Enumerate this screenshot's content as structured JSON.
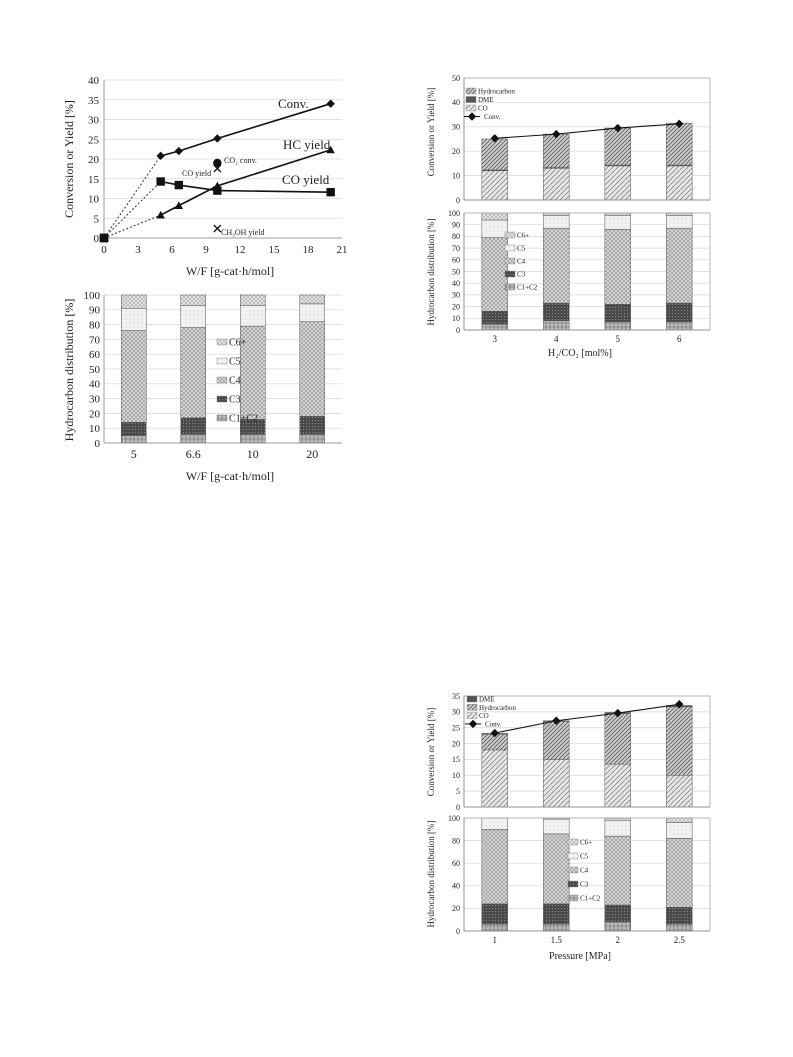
{
  "colors": {
    "conv_line": "#111111",
    "dashed": "#333333",
    "bar_outline": "#555555",
    "grid": "#d6d6d6"
  },
  "chart_data": [
    {
      "id": "wf_conversion",
      "type": "line",
      "xlabel": "W/F [g-cat·h/mol]",
      "ylabel": "Conversion or Yield [%]",
      "xlim": [
        0,
        21
      ],
      "ylim": [
        0,
        40
      ],
      "xticks": [
        0,
        3,
        6,
        9,
        12,
        15,
        18,
        21
      ],
      "yticks": [
        0,
        5,
        10,
        15,
        20,
        25,
        30,
        35,
        40
      ],
      "grid": "horizontal",
      "series": [
        {
          "name": "Conv.",
          "marker": "diamond",
          "points": [
            [
              0,
              0
            ],
            [
              5,
              20.8
            ],
            [
              6.6,
              22
            ],
            [
              10,
              25.2
            ],
            [
              20,
              34
            ]
          ],
          "dashed_until": 1
        },
        {
          "name": "HC yield",
          "marker": "triangle",
          "points": [
            [
              0,
              0
            ],
            [
              5,
              5.8
            ],
            [
              6.6,
              8.2
            ],
            [
              10,
              13.2
            ],
            [
              20,
              22.3
            ]
          ],
          "dashed_until": 1
        },
        {
          "name": "CO yield",
          "marker": "square",
          "points": [
            [
              0,
              0
            ],
            [
              5,
              14.3
            ],
            [
              6.6,
              13.4
            ],
            [
              10,
              12
            ],
            [
              20,
              11.6
            ]
          ],
          "dashed_until": 1
        },
        {
          "name": "CO2 conv.",
          "marker": "circle",
          "points": [
            [
              10,
              19
            ]
          ]
        },
        {
          "name": "CO yield",
          "marker": "x",
          "points": [
            [
              10,
              17.6
            ]
          ]
        },
        {
          "name": "CH3OH yield",
          "marker": "x",
          "points": [
            [
              10,
              2.4
            ]
          ]
        }
      ],
      "labels": {
        "conv": "Conv.",
        "hc": "HC yield",
        "co": "CO yield",
        "co2": "CO₂ conv.",
        "co_small": "CO yield",
        "ch3oh": "CH₃OH yield"
      }
    },
    {
      "id": "wf_distribution",
      "type": "bar",
      "stacked": true,
      "xlabel": "W/F [g-cat·h/mol]",
      "ylabel": "Hydrocarbon distribution [%]",
      "ylim": [
        0,
        100
      ],
      "yticks": [
        0,
        10,
        20,
        30,
        40,
        50,
        60,
        70,
        80,
        90,
        100
      ],
      "categories": [
        "5",
        "6.6",
        "10",
        "20"
      ],
      "legend": [
        "C6+",
        "C5",
        "C4",
        "C3",
        "C1+C2"
      ],
      "series": [
        {
          "name": "C1+C2",
          "values": [
            5,
            6,
            6,
            6
          ],
          "pattern": "p-c12"
        },
        {
          "name": "C3",
          "values": [
            9,
            11,
            10,
            12
          ],
          "pattern": "p-c3"
        },
        {
          "name": "C4",
          "values": [
            62,
            61,
            63,
            64
          ],
          "pattern": "p-c4"
        },
        {
          "name": "C5",
          "values": [
            15,
            15,
            14,
            12
          ],
          "pattern": "p-c5"
        },
        {
          "name": "C6+",
          "values": [
            9,
            7,
            7,
            6
          ],
          "pattern": "p-c6"
        }
      ]
    },
    {
      "id": "h2co2_conversion",
      "type": "bar",
      "stacked": true,
      "xlabel": "",
      "ylabel": "Conversion or Yield [%]",
      "ylim": [
        0,
        50
      ],
      "yticks": [
        0,
        10,
        20,
        30,
        40,
        50
      ],
      "categories": [
        "3",
        "4",
        "5",
        "6"
      ],
      "legend": [
        "Hydrocarbon",
        "DME",
        "CO",
        "Conv."
      ],
      "series": [
        {
          "name": "CO",
          "values": [
            12,
            13,
            14,
            14
          ],
          "pattern": "p-co"
        },
        {
          "name": "DME",
          "values": [
            0.3,
            0.3,
            0.3,
            0.3
          ],
          "pattern": "p-dme"
        },
        {
          "name": "Hydrocarbon",
          "values": [
            12.7,
            13.7,
            15.2,
            17.2
          ],
          "pattern": "p-hc"
        }
      ],
      "line": {
        "name": "Conv.",
        "values": [
          25.3,
          27,
          29.5,
          31.2
        ]
      }
    },
    {
      "id": "h2co2_distribution",
      "type": "bar",
      "stacked": true,
      "xlabel": "H₂/CO₂ [mol%]",
      "ylabel": "Hydrocarbon distribution [%]",
      "ylim": [
        0,
        100
      ],
      "yticks": [
        0,
        10,
        20,
        30,
        40,
        50,
        60,
        70,
        80,
        90,
        100
      ],
      "categories": [
        "3",
        "4",
        "5",
        "6"
      ],
      "legend": [
        "C6+",
        "C5",
        "C4",
        "C3",
        "C1+C2"
      ],
      "series": [
        {
          "name": "C1+C2",
          "values": [
            5,
            8,
            7,
            7
          ],
          "pattern": "p-c12"
        },
        {
          "name": "C3",
          "values": [
            11,
            15,
            15,
            16
          ],
          "pattern": "p-c3"
        },
        {
          "name": "C4",
          "values": [
            63,
            64,
            64,
            64
          ],
          "pattern": "p-c4"
        },
        {
          "name": "C5",
          "values": [
            15,
            11,
            12,
            11
          ],
          "pattern": "p-c5"
        },
        {
          "name": "C6+",
          "values": [
            6,
            2,
            2,
            2
          ],
          "pattern": "p-c6"
        }
      ]
    },
    {
      "id": "pressure_conversion",
      "type": "bar",
      "stacked": true,
      "xlabel": "",
      "ylabel": "Conversion or Yield [%]",
      "ylim": [
        0,
        35
      ],
      "yticks": [
        0,
        5,
        10,
        15,
        20,
        25,
        30,
        35
      ],
      "categories": [
        "1",
        "1.5",
        "2",
        "2.5"
      ],
      "legend": [
        "DME",
        "Hydrocarbon",
        "CO",
        "Conv."
      ],
      "series": [
        {
          "name": "CO",
          "values": [
            18,
            15,
            13.5,
            10
          ],
          "pattern": "p-co"
        },
        {
          "name": "Hydrocarbon",
          "values": [
            5,
            12,
            16,
            21.6
          ],
          "pattern": "p-hc"
        },
        {
          "name": "DME",
          "values": [
            0.2,
            0.2,
            0.3,
            0.4
          ],
          "pattern": "p-dme"
        }
      ],
      "line": {
        "name": "Conv.",
        "values": [
          23.3,
          27.2,
          29.6,
          32.4
        ]
      }
    },
    {
      "id": "pressure_distribution",
      "type": "bar",
      "stacked": true,
      "xlabel": "Pressure [MPa]",
      "ylabel": "Hydrocarbon distribution [%]",
      "ylim": [
        0,
        100
      ],
      "yticks": [
        0,
        20,
        40,
        60,
        80,
        100
      ],
      "categories": [
        "1",
        "1.5",
        "2",
        "2.5"
      ],
      "legend": [
        "C6+",
        "C5",
        "C4",
        "C3",
        "C1+C2"
      ],
      "series": [
        {
          "name": "C1+C2",
          "values": [
            6,
            6,
            8,
            6
          ],
          "pattern": "p-c12"
        },
        {
          "name": "C3",
          "values": [
            18,
            18,
            15,
            15
          ],
          "pattern": "p-c3"
        },
        {
          "name": "C4",
          "values": [
            66,
            62,
            61,
            61
          ],
          "pattern": "p-c4"
        },
        {
          "name": "C5",
          "values": [
            10,
            13,
            14,
            14
          ],
          "pattern": "p-c5"
        },
        {
          "name": "C6+",
          "values": [
            0,
            1,
            2,
            4
          ],
          "pattern": "p-c6"
        }
      ]
    }
  ]
}
